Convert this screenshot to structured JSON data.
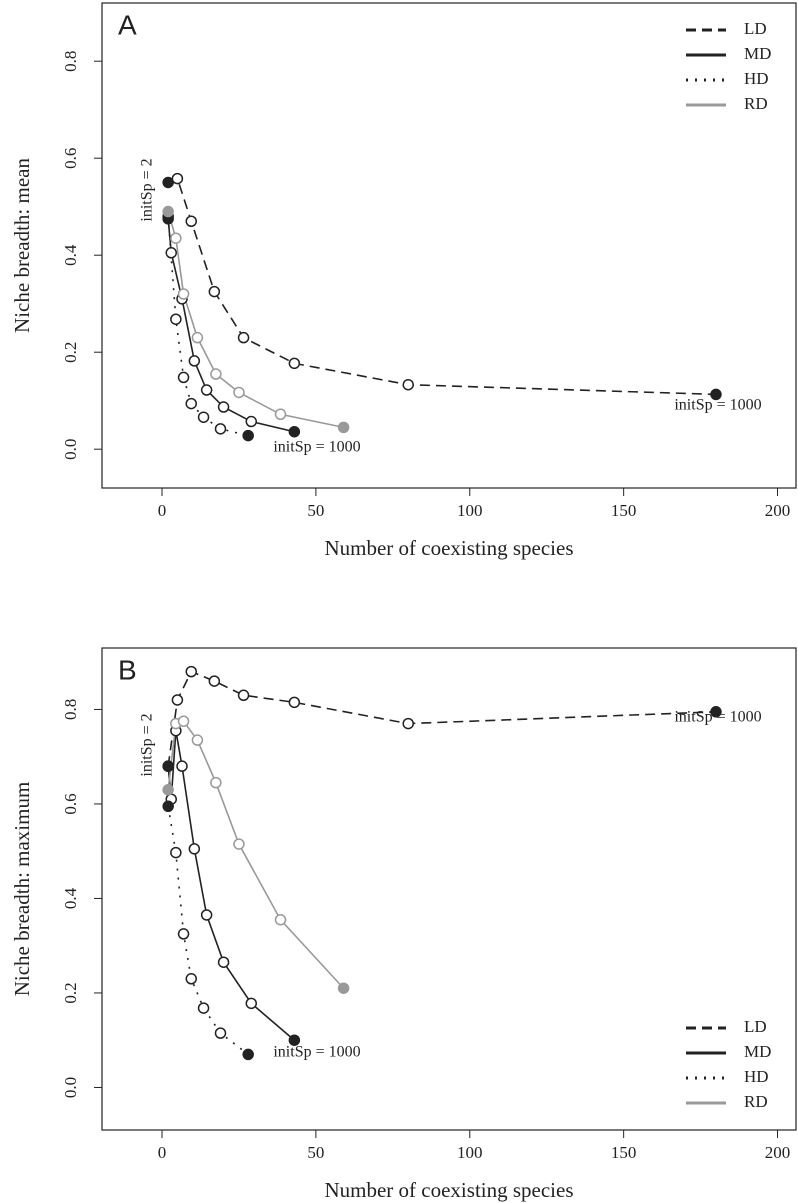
{
  "chart_data": [
    {
      "type": "line",
      "panel_label": "A",
      "x_label": "Number of coexisting species",
      "y_label": "Niche breadth: mean",
      "xlim": [
        -19.5,
        206
      ],
      "ylim": [
        -0.08,
        0.92
      ],
      "xticks": [
        0,
        50,
        100,
        150,
        200
      ],
      "yticks": [
        {
          "value": 0,
          "label": "0.0"
        },
        0.2,
        0.4,
        0.6,
        0.8
      ],
      "legend": "topright",
      "annotations": [
        "initSp = 2",
        "initSp = 1000",
        "initSp = 1000"
      ],
      "series": [
        {
          "name": "LD",
          "color": "#222222",
          "linestyle": "dashed",
          "x": [
            2,
            5,
            9.5,
            17,
            26.5,
            43,
            80,
            180
          ],
          "y": [
            0.55,
            0.558,
            0.47,
            0.325,
            0.23,
            0.177,
            0.133,
            0.113
          ]
        },
        {
          "name": "MD",
          "color": "#222222",
          "linestyle": "solid",
          "x": [
            2,
            3,
            6.5,
            10.5,
            14.5,
            20,
            29,
            43
          ],
          "y": [
            0.475,
            0.405,
            0.31,
            0.182,
            0.122,
            0.087,
            0.057,
            0.036
          ]
        },
        {
          "name": "HD",
          "color": "#222222",
          "linestyle": "dotted",
          "x": [
            2,
            4.5,
            7,
            9.5,
            13.5,
            19,
            28
          ],
          "y": [
            0.48,
            0.268,
            0.148,
            0.094,
            0.066,
            0.042,
            0.028
          ]
        },
        {
          "name": "RD",
          "color": "#999999",
          "linestyle": "solid",
          "x": [
            2,
            4.5,
            7,
            11.5,
            17.5,
            25,
            38.5,
            59
          ],
          "y": [
            0.49,
            0.435,
            0.32,
            0.23,
            0.155,
            0.117,
            0.072,
            0.045
          ]
        }
      ]
    },
    {
      "type": "line",
      "panel_label": "B",
      "x_label": "Number of coexisting species",
      "y_label": "Niche breadth: maximum",
      "xlim": [
        -19.5,
        206
      ],
      "ylim": [
        -0.09,
        0.93
      ],
      "xticks": [
        0,
        50,
        100,
        150,
        200
      ],
      "yticks": [
        {
          "value": 0,
          "label": "0.0"
        },
        0.2,
        0.4,
        0.6,
        0.8
      ],
      "legend": "bottomright",
      "annotations": [
        "initSp = 2",
        "initSp = 1000",
        "initSp = 1000"
      ],
      "series": [
        {
          "name": "LD",
          "color": "#222222",
          "linestyle": "dashed",
          "x": [
            2,
            5,
            9.5,
            17,
            26.5,
            43,
            80,
            180
          ],
          "y": [
            0.68,
            0.82,
            0.88,
            0.86,
            0.83,
            0.815,
            0.77,
            0.795
          ]
        },
        {
          "name": "MD",
          "color": "#222222",
          "linestyle": "solid",
          "x": [
            2,
            3,
            4.5,
            6.5,
            10.5,
            14.5,
            20,
            29,
            43
          ],
          "y": [
            0.68,
            0.61,
            0.755,
            0.68,
            0.505,
            0.365,
            0.265,
            0.178,
            0.1
          ]
        },
        {
          "name": "HD",
          "color": "#222222",
          "linestyle": "dotted",
          "x": [
            2,
            4.5,
            7,
            9.5,
            13.5,
            19,
            28
          ],
          "y": [
            0.595,
            0.497,
            0.325,
            0.23,
            0.168,
            0.115,
            0.07
          ]
        },
        {
          "name": "RD",
          "color": "#999999",
          "linestyle": "solid",
          "x": [
            2,
            4.5,
            7,
            11.5,
            17.5,
            25,
            38.5,
            59
          ],
          "y": [
            0.63,
            0.77,
            0.775,
            0.735,
            0.645,
            0.515,
            0.355,
            0.21
          ]
        }
      ]
    }
  ]
}
